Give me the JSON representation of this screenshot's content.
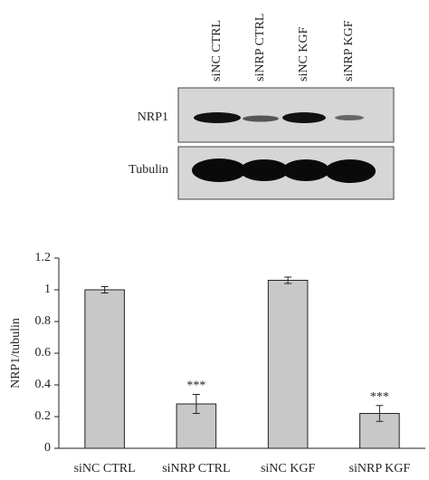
{
  "blot": {
    "lanes": [
      "siNC CTRL",
      "siNRP CTRL",
      "siNC KGF",
      "siNRP KGF"
    ],
    "rows": [
      "NRP1",
      "Tubulin"
    ]
  },
  "chart_data": {
    "type": "bar",
    "y_label": "NRP1/tubulin",
    "categories": [
      "siNC CTRL",
      "siNRP CTRL",
      "siNC KGF",
      "siNRP KGF"
    ],
    "values": [
      1.0,
      0.28,
      1.06,
      0.22
    ],
    "errors": [
      0.02,
      0.06,
      0.02,
      0.05
    ],
    "annotations": [
      null,
      "***",
      null,
      "***"
    ],
    "color": "#c8c8c8",
    "ylim": [
      0,
      1.2
    ],
    "yticks": [
      0,
      0.2,
      0.4,
      0.6,
      0.8,
      1,
      1.2
    ]
  }
}
